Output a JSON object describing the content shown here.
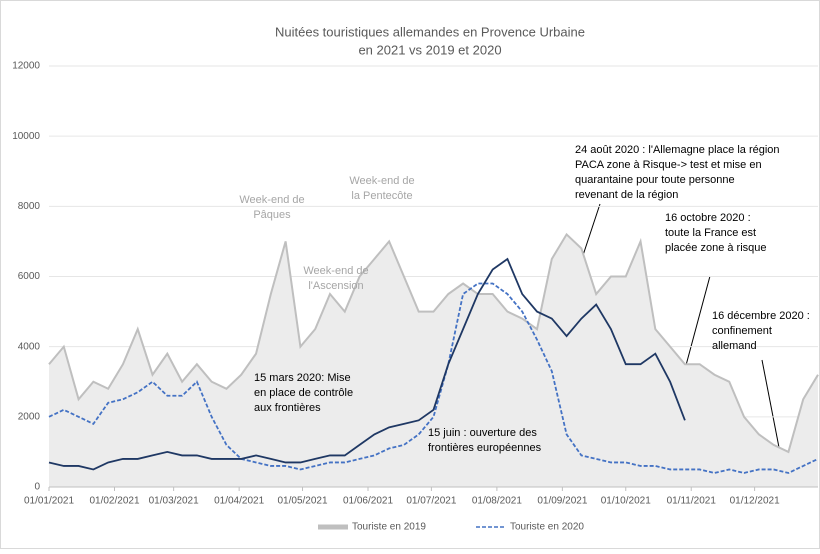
{
  "chart_data": {
    "type": "line",
    "title": [
      "Nuitées touristiques allemandes en Provence Urbaine",
      "en 2021 vs 2019 et 2020"
    ],
    "x": [
      "01/01/2021",
      "08/01/2021",
      "15/01/2021",
      "22/01/2021",
      "29/01/2021",
      "05/02/2021",
      "12/02/2021",
      "19/02/2021",
      "26/02/2021",
      "05/03/2021",
      "12/03/2021",
      "19/03/2021",
      "26/03/2021",
      "02/04/2021",
      "09/04/2021",
      "16/04/2021",
      "23/04/2021",
      "30/04/2021",
      "07/05/2021",
      "14/05/2021",
      "21/05/2021",
      "28/05/2021",
      "04/06/2021",
      "11/06/2021",
      "18/06/2021",
      "25/06/2021",
      "02/07/2021",
      "09/07/2021",
      "16/07/2021",
      "23/07/2021",
      "30/07/2021",
      "06/08/2021",
      "13/08/2021",
      "20/08/2021",
      "27/08/2021",
      "03/09/2021",
      "10/09/2021",
      "17/09/2021",
      "24/09/2021",
      "01/10/2021",
      "08/10/2021",
      "15/10/2021",
      "22/10/2021",
      "29/10/2021",
      "05/11/2021",
      "12/11/2021",
      "19/11/2021",
      "26/11/2021",
      "03/12/2021",
      "10/12/2021",
      "17/12/2021",
      "24/12/2021",
      "31/12/2021"
    ],
    "xlim": [
      "01/01/2021",
      "31/12/2021"
    ],
    "xticks": [
      "01/01/2021",
      "01/02/2021",
      "01/03/2021",
      "01/04/2021",
      "01/05/2021",
      "01/06/2021",
      "01/07/2021",
      "01/08/2021",
      "01/09/2021",
      "01/10/2021",
      "01/11/2021",
      "01/12/2021"
    ],
    "ylim": [
      0,
      12000
    ],
    "yticks": [
      0,
      2000,
      4000,
      6000,
      8000,
      10000,
      12000
    ],
    "series": [
      {
        "name": "Touriste en 2019",
        "color": "#bfbfbf",
        "area": "#ececec",
        "dash": false,
        "values": [
          3500,
          4000,
          2500,
          3000,
          2800,
          3500,
          4500,
          3200,
          3800,
          3000,
          3500,
          3000,
          2800,
          3200,
          3800,
          5500,
          7000,
          4000,
          4500,
          5500,
          5000,
          6000,
          6500,
          7000,
          6000,
          5000,
          5000,
          5500,
          5800,
          5500,
          5500,
          5000,
          4800,
          4500,
          6500,
          7200,
          6800,
          5500,
          6000,
          6000,
          7000,
          4500,
          4000,
          3500,
          3500,
          3200,
          3000,
          2000,
          1500,
          1200,
          1000,
          2500,
          3200
        ]
      },
      {
        "name": "Touriste en 2020",
        "color": "#4472c4",
        "dash": true,
        "values": [
          2000,
          2200,
          2000,
          1800,
          2400,
          2500,
          2700,
          3000,
          2600,
          2600,
          3000,
          2000,
          1200,
          800,
          700,
          600,
          600,
          500,
          600,
          700,
          700,
          800,
          900,
          1100,
          1200,
          1500,
          2000,
          3500,
          5500,
          5800,
          5800,
          5500,
          5000,
          4200,
          3300,
          1500,
          900,
          800,
          700,
          700,
          600,
          600,
          500,
          500,
          500,
          400,
          500,
          400,
          500,
          500,
          400,
          600,
          800
        ]
      },
      {
        "color": "#1f3864",
        "dash": false,
        "values": [
          700,
          600,
          600,
          500,
          700,
          800,
          800,
          900,
          1000,
          900,
          900,
          800,
          800,
          800,
          900,
          800,
          700,
          700,
          800,
          900,
          900,
          1200,
          1500,
          1700,
          1800,
          1900,
          2200,
          3500,
          4500,
          5500,
          6200,
          6500,
          5500,
          5000,
          4800,
          4300,
          4800,
          5200,
          4500,
          3500,
          3500,
          3800,
          3000,
          1900,
          null,
          null,
          null,
          null,
          null,
          null,
          null,
          null,
          null
        ]
      }
    ],
    "annotations": [
      {
        "lines": [
          "Week-end de",
          "Pâques"
        ]
      },
      {
        "lines": [
          "Week-end de",
          "la Pentecôte"
        ]
      },
      {
        "lines": [
          "Week-end de",
          "l'Ascension"
        ]
      },
      {
        "lines": [
          "24 août 2020 : l'Allemagne place la région",
          "PACA zone à Risque-> test et  mise en",
          "quarantaine pour toute personne",
          "revenant de la région"
        ]
      },
      {
        "lines": [
          "16 octobre 2020 :",
          "toute la France est",
          "placée zone à risque"
        ]
      },
      {
        "lines": [
          "16 décembre 2020 :",
          "confinement",
          "allemand"
        ]
      },
      {
        "lines": [
          "15 mars 2020: Mise",
          "en place de contrôle",
          "aux frontières"
        ]
      },
      {
        "lines": [
          "15 juin : ouverture des",
          "frontières européennes"
        ]
      }
    ]
  }
}
